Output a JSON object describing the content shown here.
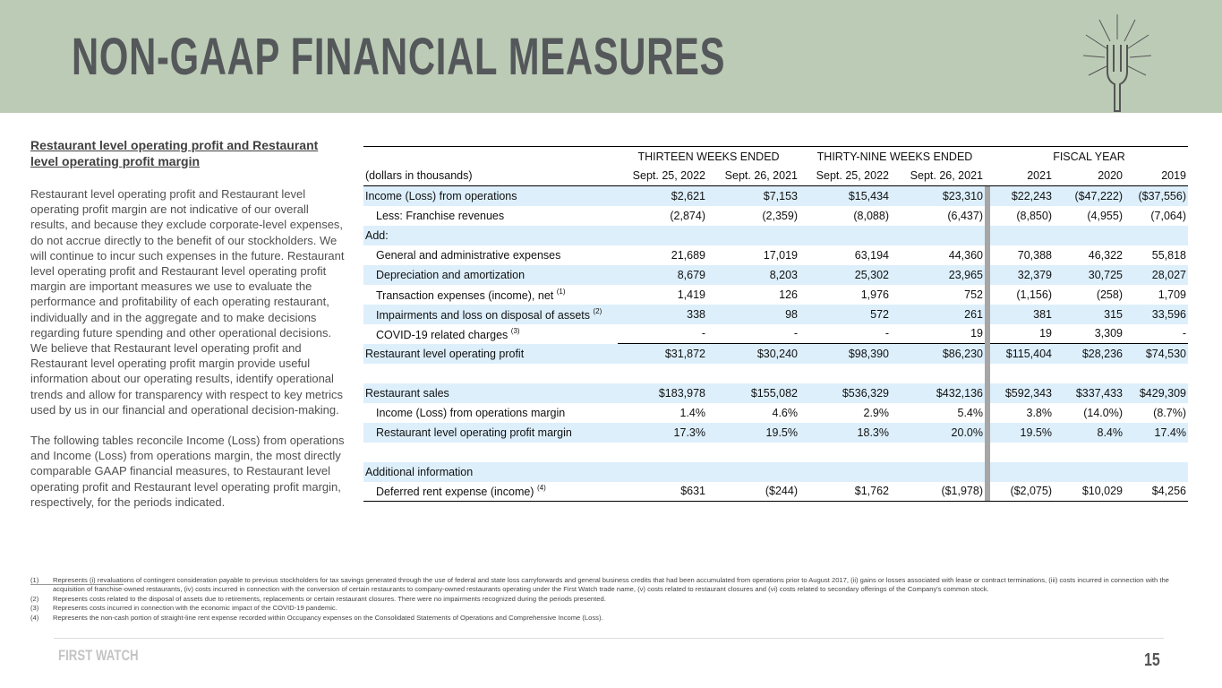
{
  "header": {
    "title": "NON-GAAP FINANCIAL MEASURES"
  },
  "sidebar": {
    "heading": "Restaurant level operating profit and Restaurant level operating profit margin",
    "paragraphs": [
      "Restaurant level operating profit and Restaurant level operating profit margin are not indicative of our overall results, and because they exclude corporate-level expenses, do not accrue directly to the benefit of our stockholders. We will continue to incur such expenses in the future. Restaurant level operating profit and Restaurant level operating profit margin are important measures we use to evaluate the performance and profitability of each operating restaurant, individually and in the aggregate and to make decisions regarding future spending and other operational decisions. We believe that Restaurant level operating profit and Restaurant level operating profit margin provide useful information about our operating results, identify operational trends and allow for transparency with respect to key metrics used by us in our financial and operational decision-making.",
      "The following tables reconcile Income (Loss) from operations and Income (Loss) from operations margin, the most directly comparable GAAP financial measures, to Restaurant level operating profit and Restaurant level operating profit margin, respectively, for the periods indicated."
    ]
  },
  "table": {
    "group_headers": [
      "THIRTEEN WEEKS ENDED",
      "THIRTY-NINE WEEKS ENDED",
      "FISCAL YEAR"
    ],
    "columns": [
      "(dollars in thousands)",
      "Sept. 25, 2022",
      "Sept. 26, 2021",
      "Sept. 25, 2022",
      "Sept. 26, 2021",
      "2021",
      "2020",
      "2019"
    ],
    "rows": [
      {
        "label": "Income (Loss) from operations",
        "cells": [
          "$2,621",
          "$7,153",
          "$15,434",
          "$23,310",
          "$22,243",
          "($47,222)",
          "($37,556)"
        ]
      },
      {
        "label": "Less: Franchise revenues",
        "cells": [
          "(2,874)",
          "(2,359)",
          "(8,088)",
          "(6,437)",
          "(8,850)",
          "(4,955)",
          "(7,064)"
        ]
      },
      {
        "label": "Add:"
      },
      {
        "label": "General and administrative expenses",
        "cells": [
          "21,689",
          "17,019",
          "63,194",
          "44,360",
          "70,388",
          "46,322",
          "55,818"
        ]
      },
      {
        "label": "Depreciation and amortization",
        "cells": [
          "8,679",
          "8,203",
          "25,302",
          "23,965",
          "32,379",
          "30,725",
          "28,027"
        ]
      },
      {
        "label": "Transaction expenses (income), net",
        "note": "(1)",
        "cells": [
          "1,419",
          "126",
          "1,976",
          "752",
          "(1,156)",
          "(258)",
          "1,709"
        ]
      },
      {
        "label": "Impairments and loss on disposal of assets",
        "note": "(2)",
        "cells": [
          "338",
          "98",
          "572",
          "261",
          "381",
          "315",
          "33,596"
        ]
      },
      {
        "label": "COVID-19 related charges",
        "note": "(3)",
        "cells": [
          "-",
          "-",
          "-",
          "19",
          "19",
          "3,309",
          "-"
        ]
      },
      {
        "label": "Restaurant level operating profit",
        "cells": [
          "$31,872",
          "$30,240",
          "$98,390",
          "$86,230",
          "$115,404",
          "$28,236",
          "$74,530"
        ]
      },
      {
        "label": "Restaurant sales",
        "cells": [
          "$183,978",
          "$155,082",
          "$536,329",
          "$432,136",
          "$592,343",
          "$337,433",
          "$429,309"
        ]
      },
      {
        "label": "Income (Loss) from operations margin",
        "cells": [
          "1.4%",
          "4.6%",
          "2.9%",
          "5.4%",
          "3.8%",
          "(14.0%)",
          "(8.7%)"
        ]
      },
      {
        "label": "Restaurant level operating profit margin",
        "cells": [
          "17.3%",
          "19.5%",
          "18.3%",
          "20.0%",
          "19.5%",
          "8.4%",
          "17.4%"
        ]
      },
      {
        "label": "Additional information"
      },
      {
        "label": "Deferred rent expense (income)",
        "note": "(4)",
        "cells": [
          "$631",
          "($244)",
          "$1,762",
          "($1,978)",
          "($2,075)",
          "$10,029",
          "$4,256"
        ]
      }
    ]
  },
  "footnotes": [
    {
      "marker": "(1)",
      "text": "Represents (i) revaluations of contingent consideration payable to previous stockholders for tax savings generated through the use of federal and state loss carryforwards and general business credits that had been accumulated from operations prior to August 2017, (ii) gains or losses associated with lease or contract terminations, (iii) costs incurred in connection with the acquisition of franchise-owned restaurants, (iv) costs incurred in connection with the conversion of certain restaurants to company-owned restaurants operating under the First Watch trade name, (v) costs related to restaurant closures  and (vi) costs related to secondary offerings of the Company's common stock."
    },
    {
      "marker": "(2)",
      "text": "Represents costs related to the disposal of assets due to retirements, replacements or certain restaurant closures. There were no impairments recognized during the periods presented."
    },
    {
      "marker": "(3)",
      "text": "Represents costs incurred in connection with the economic impact of the COVID-19 pandemic."
    },
    {
      "marker": "(4)",
      "text": "Represents the non-cash portion of straight-line rent expense recorded within Occupancy expenses on the Consolidated Statements of Operations and Comprehensive Income (Loss)."
    }
  ],
  "footer": {
    "brand": "FIRST WATCH",
    "page": "15"
  }
}
